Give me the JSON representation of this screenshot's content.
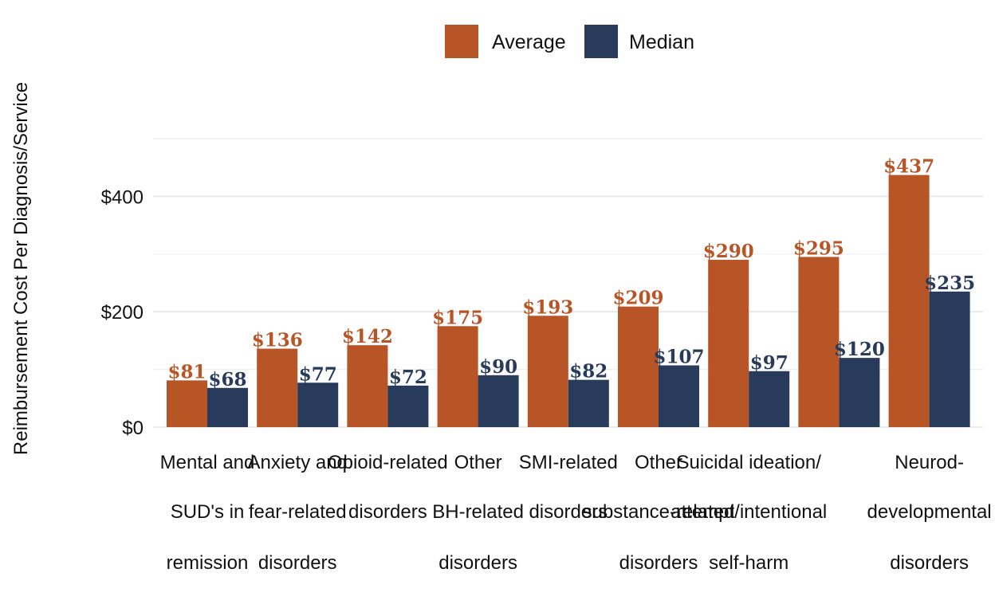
{
  "chart_data": {
    "type": "bar",
    "ylabel": "Reimbursement Cost Per Diagnosis/Service",
    "ylim": [
      0,
      500
    ],
    "yticks": [
      {
        "value": 0,
        "label": "$0"
      },
      {
        "value": 200,
        "label": "$200"
      },
      {
        "value": 400,
        "label": "$400"
      }
    ],
    "grid": true,
    "legend_position": "top",
    "categories": [
      [
        "Mental and",
        "SUD's in",
        "remission"
      ],
      [
        "Anxiety and",
        "fear-related",
        "disorders"
      ],
      [
        "Opioid-related",
        "disorders",
        ""
      ],
      [
        "Other",
        "BH-related",
        "disorders"
      ],
      [
        "SMI-related",
        "disorders",
        ""
      ],
      [
        "Other",
        "substance-related",
        "disorders"
      ],
      [
        "Suicidal ideation/",
        "attempt/intentional",
        "self-harm"
      ],
      [
        "",
        "",
        ""
      ],
      [
        "Neurod-",
        "developmental",
        "disorders"
      ]
    ],
    "series": [
      {
        "name": "Average",
        "color": "#b85527",
        "values": [
          81,
          136,
          142,
          175,
          193,
          209,
          290,
          295,
          437
        ],
        "labels": [
          "$81",
          "$136",
          "$142",
          "$175",
          "$193",
          "$209",
          "$290",
          "$295",
          "$437"
        ]
      },
      {
        "name": "Median",
        "color": "#293b5a",
        "values": [
          68,
          77,
          72,
          90,
          82,
          107,
          97,
          120,
          235
        ],
        "labels": [
          "$68",
          "$77",
          "$72",
          "$90",
          "$82",
          "$107",
          "$97",
          "$120",
          "$235"
        ]
      }
    ]
  }
}
